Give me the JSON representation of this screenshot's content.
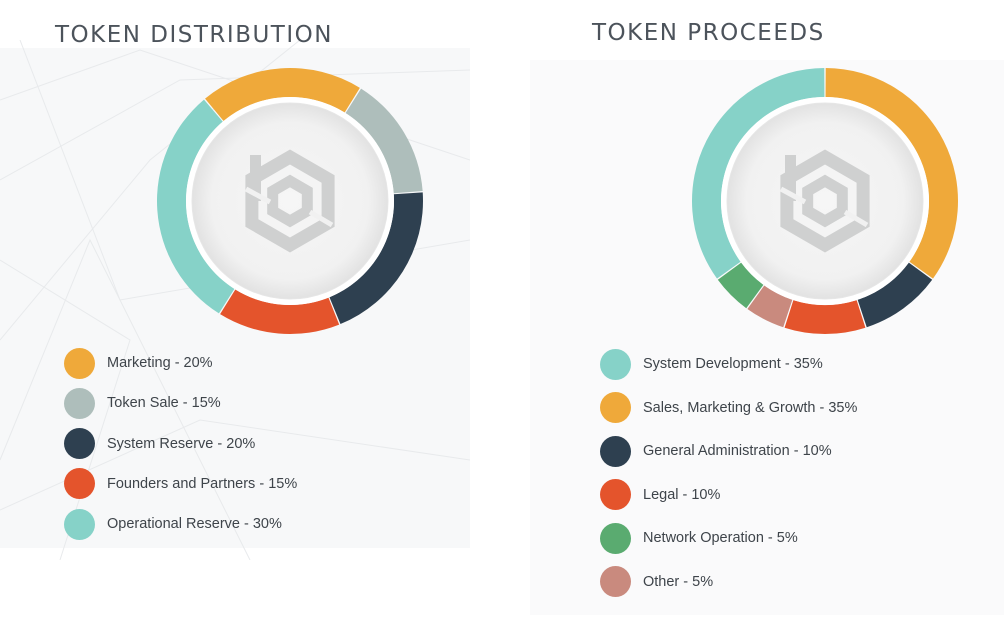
{
  "chart_data": [
    {
      "type": "pie",
      "title": "TOKEN DISTRIBUTION",
      "categories": [
        "Marketing",
        "Token Sale",
        "System Reserve",
        "Founders and Partners",
        "Operational Reserve"
      ],
      "values": [
        20,
        15,
        20,
        15,
        30
      ],
      "colors": [
        "#efa93a",
        "#aebebb",
        "#2e4050",
        "#e4542c",
        "#86d2c8"
      ],
      "legend_labels": [
        "Marketing - 20%",
        "Token Sale - 15%",
        "System Reserve - 20%",
        "Founders and Partners - 15%",
        "Operational Reserve - 30%"
      ],
      "start_angle_deg": -40,
      "legend_position": "bottom",
      "center_icon": "hexagon-logo-icon"
    },
    {
      "type": "pie",
      "title": "TOKEN PROCEEDS",
      "categories": [
        "System Development",
        "Sales, Marketing & Growth",
        "General Administration",
        "Legal",
        "Network Operation",
        "Other"
      ],
      "values": [
        35,
        35,
        10,
        10,
        5,
        5
      ],
      "colors": [
        "#86d2c8",
        "#efa93a",
        "#2e4050",
        "#e4542c",
        "#5aab70",
        "#c98a7e"
      ],
      "legend_labels": [
        "System Development - 35%",
        "Sales, Marketing & Growth - 35%",
        "General Administration - 10%",
        "Legal - 10%",
        "Network Operation - 5%",
        "Other - 5%"
      ],
      "slice_order": [
        1,
        2,
        3,
        5,
        4,
        0
      ],
      "start_angle_deg": 0,
      "legend_position": "bottom",
      "center_icon": "hexagon-logo-icon"
    }
  ]
}
